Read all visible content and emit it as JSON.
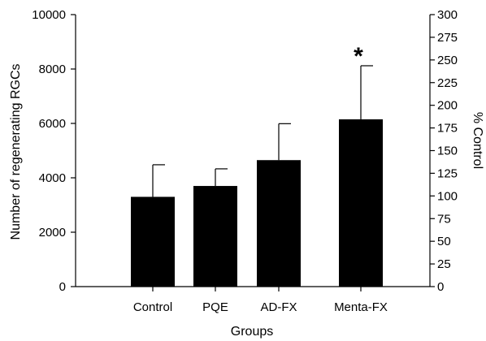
{
  "chart_data": {
    "type": "bar",
    "xlabel": "Groups",
    "ylabel": "Number of regenerating RGCs",
    "ylabel_right": "% Control",
    "categories": [
      "Control",
      "PQE",
      "AD-FX",
      "Menta-FX"
    ],
    "series": [
      {
        "values": [
          3300,
          3700,
          4650,
          6150
        ],
        "error_upper": [
          4480,
          4330,
          5990,
          8120
        ]
      }
    ],
    "ylim": [
      0,
      10000
    ],
    "yticks": [
      0,
      2000,
      4000,
      6000,
      8000,
      10000
    ],
    "ytick_labels": [
      "0",
      "2000",
      "4000",
      "6000",
      "8000",
      "10000"
    ],
    "ylim_right": [
      0,
      300
    ],
    "yticks_right": [
      0,
      25,
      50,
      75,
      100,
      125,
      150,
      175,
      200,
      225,
      250,
      275,
      300
    ],
    "ytick_labels_right": [
      "0",
      "25",
      "50",
      "75",
      "100",
      "125",
      "150",
      "175",
      "200",
      "225",
      "250",
      "275",
      "300"
    ],
    "annotations": [
      {
        "category": "Menta-FX",
        "text": "*"
      }
    ],
    "bar_color": "#000000",
    "grid": false,
    "legend": "none"
  }
}
